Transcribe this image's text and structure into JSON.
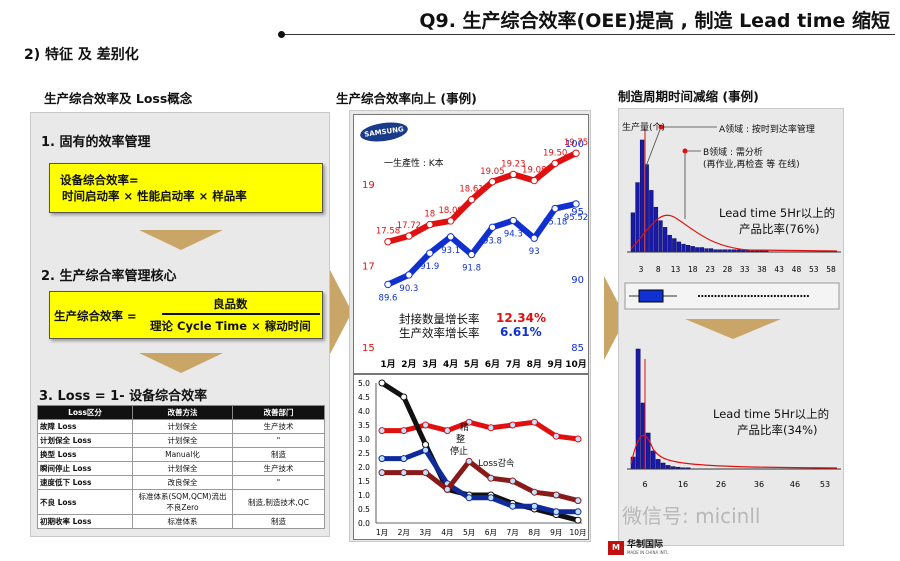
{
  "header": {
    "title": "Q9.   生产综合效率(OEE)提高 , 制造 Lead time 缩短",
    "subtitle": "2) 特征 及 差别化"
  },
  "columns": {
    "left": "生产综合效率及 Loss概念",
    "middle": "生产综合效率向上 (事例)",
    "right": "制造周期时间减缩 (事例)"
  },
  "left_panel": {
    "sec1_title": "1. 固有的效率管理",
    "box1_line1": "设备综合效率=",
    "box1_line2": "时间启动率 × 性能启动率 × 样品率",
    "sec2_title": "2. 生产综合率管理核心",
    "box2_label": "生产综合效率 =",
    "box2_numerator": "良品数",
    "box2_denominator": "理论 Cycle Time × 稼动时间",
    "sec3_title": "3. Loss  = 1- 设备综合效率",
    "table": {
      "headers": [
        "Loss区分",
        "改善方法",
        "改善部门"
      ],
      "rows": [
        [
          "故障 Loss",
          "计划保全",
          "生产技术"
        ],
        [
          "计划保全 Loss",
          "计划保全",
          "\""
        ],
        [
          "换型 Loss",
          "Manual化",
          "制造"
        ],
        [
          "瞬间停止 Loss",
          "计划保全",
          "生产技术"
        ],
        [
          "速度低下 Loss",
          "改良保全",
          "\""
        ],
        [
          "不良 Loss",
          "标准体系(SQM,QCM)流出不良Zero",
          "制造,制造技术,QC"
        ],
        [
          "初期收率 Loss",
          "标准体系",
          "制造"
        ]
      ]
    }
  },
  "middle_panel": {
    "logo": "SAMSUNG",
    "legend_text": "一生產性 : K本",
    "annot1_label": "封接数量增长率",
    "annot1_value": "12.34%",
    "annot2_label": "生产效率增长率",
    "annot2_value": "6.61%",
    "loss_label1": "精",
    "loss_label2": "整",
    "loss_label3": "停止",
    "loss_label4": "Loss감속"
  },
  "chart_data": [
    {
      "type": "line",
      "categories": [
        "1月",
        "2月",
        "3月",
        "4月",
        "5月",
        "6月",
        "7月",
        "8月",
        "9月",
        "10月"
      ],
      "series": [
        {
          "values": [
            17.58,
            17.72,
            18.0,
            18.09,
            18.61,
            19.05,
            19.23,
            19.08,
            19.5,
            19.75
          ],
          "axis": "left",
          "color": "#e01010"
        },
        {
          "values": [
            89.6,
            90.3,
            91.9,
            93.1,
            91.8,
            93.8,
            94.3,
            93.0,
            95.18,
            95.52
          ],
          "axis": "right",
          "color": "#1030d0"
        }
      ],
      "point_labels_red": [
        "17.58",
        "17.72",
        "18",
        "18.09",
        "18.61",
        "19.05",
        "19.23",
        "19.08",
        "19.50",
        "19.75"
      ],
      "point_labels_blue": [
        "89.6",
        "90.3",
        "91.9",
        "93.1",
        "91.8",
        "93.8",
        "94.3",
        "93",
        "95.18",
        "95.52"
      ],
      "ylim_left": [
        15,
        20
      ],
      "ylim_right": [
        85,
        100
      ],
      "yticks_left": [
        "15",
        "17",
        "19"
      ],
      "yticks_right": [
        "85",
        "90",
        "95",
        "100"
      ]
    },
    {
      "type": "line",
      "categories": [
        "1月",
        "2月",
        "3月",
        "4月",
        "5月",
        "6月",
        "7月",
        "8月",
        "9月",
        "10月"
      ],
      "yticks": [
        "0.0",
        "0.5",
        "1.0",
        "1.5",
        "2.0",
        "2.5",
        "3.0",
        "3.5",
        "4.0",
        "4.5",
        "5.0"
      ],
      "ylim": [
        0,
        5
      ],
      "series": [
        {
          "values": [
            3.3,
            3.3,
            3.5,
            3.3,
            3.6,
            3.4,
            3.5,
            3.6,
            3.1,
            3.0
          ],
          "color": "#e01010"
        },
        {
          "values": [
            5.0,
            4.5,
            2.8,
            1.2,
            1.0,
            1.0,
            0.7,
            0.5,
            0.3,
            0.1
          ],
          "color": "#111111"
        },
        {
          "values": [
            2.3,
            2.3,
            2.6,
            1.4,
            0.9,
            0.9,
            0.6,
            0.6,
            0.4,
            0.4
          ],
          "color": "#102a9a"
        },
        {
          "values": [
            1.8,
            1.8,
            1.8,
            1.2,
            2.2,
            1.6,
            1.5,
            1.1,
            1.0,
            0.8
          ],
          "color": "#8a1a1a"
        }
      ]
    },
    {
      "type": "bar",
      "axis_label": "生产量(个)",
      "xticks": [
        "3",
        "8",
        "13",
        "18",
        "23",
        "28",
        "33",
        "38",
        "43",
        "48",
        "53",
        "58"
      ],
      "values": [
        0.35,
        0.62,
        1.0,
        0.78,
        0.55,
        0.4,
        0.28,
        0.22,
        0.15,
        0.12,
        0.09,
        0.07,
        0.06,
        0.05,
        0.04,
        0.04,
        0.03,
        0.03,
        0.02,
        0.02,
        0.02,
        0.02,
        0.02,
        0.02,
        0.015,
        0.015,
        0.01,
        0.01,
        0.01,
        0.01
      ],
      "annotation_a": "A领域 : 按时到达率管理",
      "annotation_b": "B领域 : 需分析",
      "annotation_b2": "(再作业,再检查 等 在线)",
      "note_line1": "Lead time 5Hr以上的",
      "note_line2": "产品比率(76%)"
    },
    {
      "type": "bar",
      "xticks": [
        "6",
        "16",
        "26",
        "36",
        "46",
        "53"
      ],
      "values": [
        0.1,
        1.0,
        0.55,
        0.3,
        0.15,
        0.08,
        0.05,
        0.03,
        0.02,
        0.015,
        0.01,
        0.01
      ],
      "note_line1": "Lead time 5Hr以上的",
      "note_line2": "产品比率(34%)"
    }
  ],
  "watermark": {
    "text": "微信号: micinll",
    "brand": "华制国际",
    "brand_sub": "MADE IN CHINA INTL"
  },
  "colors": {
    "yellow_box": "#ffff00",
    "arrow": "#c9a567",
    "red_series": "#e01010",
    "blue_series": "#1030d0",
    "panel_gray": "#e9e9e9"
  }
}
